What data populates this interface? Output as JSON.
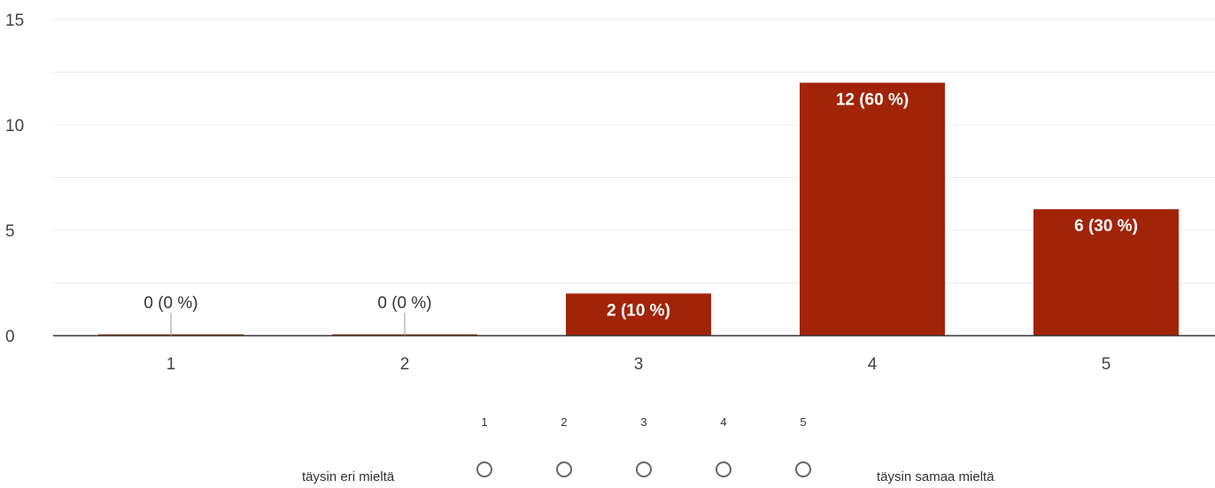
{
  "chart_data": {
    "type": "bar",
    "categories": [
      "1",
      "2",
      "3",
      "4",
      "5"
    ],
    "values": [
      0,
      0,
      2,
      12,
      6
    ],
    "data_labels": [
      "0 (0 %)",
      "0 (0 %)",
      "2 (10 %)",
      "12 (60 %)",
      "6 (30 %)"
    ],
    "yticks": [
      0,
      5,
      10,
      15
    ],
    "ylim": [
      0,
      15
    ],
    "grid": true,
    "bar_color": "#a12409"
  },
  "scale": {
    "numbers": [
      "1",
      "2",
      "3",
      "4",
      "5"
    ],
    "left_label": "täysin eri mieltä",
    "right_label": "täysin samaa mieltä"
  }
}
